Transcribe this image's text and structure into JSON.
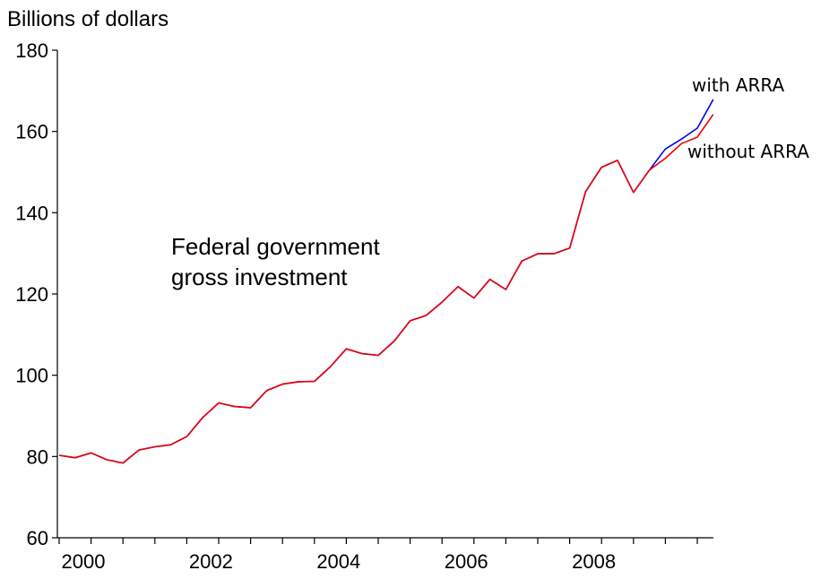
{
  "chart_data": {
    "type": "line",
    "ylabel": "Billions of dollars",
    "ylim": [
      60,
      180
    ],
    "yticks": [
      60,
      80,
      100,
      120,
      140,
      160,
      180
    ],
    "xticks": [
      "2000",
      "2002",
      "2004",
      "2006",
      "2008"
    ],
    "grid": false,
    "annotation": [
      "Federal government",
      "gross investment"
    ],
    "x": [
      "2000Q1",
      "2000Q2",
      "2000Q3",
      "2000Q4",
      "2001Q1",
      "2001Q2",
      "2001Q3",
      "2001Q4",
      "2002Q1",
      "2002Q2",
      "2002Q3",
      "2002Q4",
      "2003Q1",
      "2003Q2",
      "2003Q3",
      "2003Q4",
      "2004Q1",
      "2004Q2",
      "2004Q3",
      "2004Q4",
      "2005Q1",
      "2005Q2",
      "2005Q3",
      "2005Q4",
      "2006Q1",
      "2006Q2",
      "2006Q3",
      "2006Q4",
      "2007Q1",
      "2007Q2",
      "2007Q3",
      "2007Q4",
      "2008Q1",
      "2008Q2",
      "2008Q3",
      "2008Q4",
      "2009Q1",
      "2009Q2",
      "2009Q3",
      "2009Q4",
      "2010Q1",
      "2010Q2"
    ],
    "series": [
      {
        "name": "with ARRA",
        "color": "#0000ee",
        "values": [
          80.3,
          79.7,
          80.9,
          79.2,
          78.4,
          81.6,
          82.4,
          82.9,
          84.9,
          89.6,
          93.2,
          92.3,
          92.0,
          96.2,
          97.8,
          98.4,
          98.5,
          102.1,
          106.5,
          105.3,
          104.9,
          108.4,
          113.4,
          114.7,
          118.0,
          121.8,
          119.0,
          123.6,
          121.1,
          128.1,
          129.9,
          129.9,
          131.3,
          145.2,
          151.2,
          152.9,
          145.0,
          150.5,
          155.7,
          158.1,
          160.8,
          167.9
        ]
      },
      {
        "name": "without ARRA",
        "color": "#ee0000",
        "values": [
          80.3,
          79.7,
          80.9,
          79.2,
          78.4,
          81.6,
          82.4,
          82.9,
          84.9,
          89.6,
          93.2,
          92.3,
          92.0,
          96.2,
          97.8,
          98.4,
          98.5,
          102.1,
          106.5,
          105.3,
          104.9,
          108.4,
          113.4,
          114.7,
          118.0,
          121.8,
          119.0,
          123.6,
          121.1,
          128.1,
          129.9,
          129.9,
          131.3,
          145.2,
          151.2,
          152.9,
          145.0,
          150.5,
          153.4,
          157.0,
          158.6,
          164.2
        ]
      }
    ]
  }
}
